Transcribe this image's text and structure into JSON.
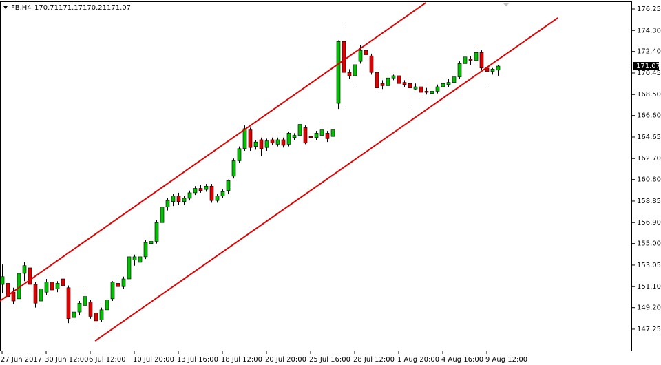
{
  "chart_data": {
    "type": "candlestick",
    "symbol": "FB,H4",
    "categories": [
      "27 Jun 2017",
      null,
      null,
      null,
      null,
      null,
      null,
      null,
      "30 Jun 12:00",
      null,
      null,
      null,
      null,
      null,
      null,
      null,
      "6 Jul 12:00",
      null,
      null,
      null,
      null,
      null,
      null,
      null,
      "10 Jul 20:00",
      null,
      null,
      null,
      null,
      null,
      null,
      null,
      "13 Jul 16:00",
      null,
      null,
      null,
      null,
      null,
      null,
      null,
      "18 Jul 12:00",
      null,
      null,
      null,
      null,
      null,
      null,
      null,
      "20 Jul 20:00",
      null,
      null,
      null,
      null,
      null,
      null,
      null,
      "25 Jul 16:00",
      null,
      null,
      null,
      null,
      null,
      null,
      null,
      "28 Jul 12:00",
      null,
      null,
      null,
      null,
      null,
      null,
      null,
      "1 Aug 20:00",
      null,
      null,
      null,
      null,
      null,
      null,
      null,
      "4 Aug 16:00",
      null,
      null,
      null,
      null,
      null,
      null,
      null,
      "9 Aug 12:00",
      null,
      null
    ],
    "open": [
      151.3,
      151.4,
      150.6,
      150.0,
      152.3,
      152.8,
      151.3,
      149.8,
      150.6,
      151.5,
      150.9,
      151.8,
      151.0,
      148.3,
      148.8,
      149.4,
      149.7,
      148.7,
      148.1,
      149.0,
      150.0,
      151.4,
      151.1,
      151.8,
      153.5,
      153.3,
      153.8,
      155.0,
      155.2,
      156.9,
      158.3,
      158.8,
      159.3,
      158.8,
      159.1,
      159.6,
      160.0,
      159.9,
      160.2,
      158.9,
      159.3,
      159.8,
      161.1,
      162.5,
      163.6,
      165.3,
      163.8,
      164.4,
      163.7,
      164.4,
      164.0,
      164.4,
      164.0,
      164.6,
      164.8,
      165.5,
      164.7,
      164.6,
      164.8,
      165.0,
      164.7,
      167.7,
      173.3,
      170.5,
      170.2,
      171.5,
      172.5,
      172.0,
      170.5,
      169.5,
      169.3,
      170.0,
      170.2,
      169.6,
      169.5,
      169.0,
      169.2,
      168.8,
      168.6,
      168.8,
      169.2,
      169.4,
      169.6,
      170.1,
      171.3,
      171.7,
      171.6,
      172.3,
      170.9,
      170.6,
      170.71
    ],
    "high": [
      153.1,
      151.6,
      151.0,
      152.4,
      153.3,
      153.0,
      151.5,
      151.1,
      151.8,
      151.7,
      151.6,
      152.2,
      151.2,
      149.0,
      149.8,
      150.7,
      149.9,
      148.9,
      149.2,
      150.1,
      151.6,
      151.7,
      152.0,
      154.0,
      154.0,
      154.0,
      155.3,
      155.4,
      157.1,
      158.5,
      159.1,
      159.5,
      159.6,
      159.3,
      159.8,
      160.2,
      160.3,
      160.4,
      160.4,
      159.5,
      159.9,
      160.8,
      162.7,
      163.8,
      165.7,
      165.5,
      164.4,
      164.6,
      164.5,
      164.6,
      164.6,
      164.6,
      165.1,
      165.0,
      166.1,
      165.7,
      164.9,
      165.2,
      165.8,
      165.2,
      165.4,
      173.4,
      174.6,
      170.8,
      171.5,
      173.0,
      172.7,
      172.2,
      170.7,
      169.8,
      170.2,
      170.3,
      170.4,
      169.8,
      169.7,
      169.5,
      169.5,
      169.1,
      169.0,
      169.4,
      169.8,
      169.9,
      170.4,
      171.5,
      172.1,
      172.0,
      172.9,
      172.5,
      171.1,
      170.9,
      171.17
    ],
    "low": [
      150.5,
      149.9,
      149.5,
      149.7,
      151.6,
      151.0,
      149.2,
      149.5,
      150.3,
      150.5,
      150.6,
      150.9,
      147.8,
      148.0,
      148.5,
      149.1,
      148.2,
      147.6,
      147.9,
      148.8,
      149.8,
      150.9,
      150.9,
      151.6,
      153.0,
      152.9,
      153.6,
      154.8,
      155.0,
      156.7,
      158.0,
      158.4,
      158.5,
      158.5,
      158.9,
      159.4,
      159.6,
      159.7,
      158.7,
      158.7,
      159.1,
      159.5,
      160.9,
      162.3,
      163.4,
      163.4,
      163.5,
      162.9,
      163.4,
      163.9,
      163.8,
      163.7,
      163.8,
      164.4,
      164.6,
      164.0,
      164.4,
      164.4,
      164.6,
      164.2,
      164.5,
      167.2,
      167.5,
      169.9,
      169.5,
      171.3,
      171.9,
      170.3,
      168.6,
      169.0,
      169.1,
      169.8,
      169.3,
      169.2,
      167.1,
      168.9,
      168.5,
      168.5,
      168.4,
      168.6,
      169.0,
      169.2,
      169.4,
      169.9,
      171.1,
      171.2,
      171.4,
      170.7,
      169.5,
      170.3,
      170.21
    ],
    "close": [
      152.0,
      150.2,
      149.8,
      152.3,
      153.0,
      151.3,
      149.6,
      150.9,
      151.5,
      150.8,
      151.4,
      151.2,
      148.2,
      148.8,
      149.6,
      150.2,
      148.4,
      148.0,
      149.0,
      149.9,
      151.5,
      151.1,
      151.8,
      153.8,
      153.8,
      153.8,
      155.1,
      155.2,
      156.9,
      158.3,
      158.9,
      159.3,
      158.8,
      159.1,
      159.6,
      160.0,
      159.8,
      160.2,
      158.9,
      159.3,
      159.7,
      160.7,
      162.5,
      163.6,
      165.4,
      163.7,
      164.2,
      163.6,
      164.3,
      164.1,
      164.4,
      163.9,
      165.0,
      164.8,
      165.8,
      164.1,
      164.6,
      165.0,
      165.3,
      164.5,
      165.3,
      173.3,
      170.5,
      170.2,
      171.2,
      172.5,
      172.1,
      170.5,
      169.1,
      169.3,
      170.0,
      170.2,
      169.5,
      169.4,
      169.1,
      169.2,
      168.7,
      168.7,
      168.8,
      169.2,
      169.5,
      169.6,
      170.1,
      171.3,
      171.9,
      171.6,
      172.3,
      170.9,
      170.6,
      170.8,
      171.07
    ],
    "up_color": "#00c000",
    "down_color": "#e00000",
    "wick_color": "#000000",
    "channel_lines": [
      {
        "color": "#e00000",
        "x": [
          -0.4,
          76.9
        ],
        "y": [
          149.8,
          176.81
        ]
      },
      {
        "color": "#e00000",
        "x": [
          16.9,
          100.9
        ],
        "y": [
          146.18,
          175.44
        ]
      }
    ],
    "ylim": [
      145.25,
      177.06
    ],
    "yticks": [
      {
        "value": 176.25,
        "label": "176.25"
      },
      {
        "value": 174.3,
        "label": "174.30"
      },
      {
        "value": 172.4,
        "label": "172.40"
      },
      {
        "value": 170.45,
        "label": "170.45"
      },
      {
        "value": 168.5,
        "label": "168.50"
      },
      {
        "value": 166.6,
        "label": "166.60"
      },
      {
        "value": 164.65,
        "label": "164.65"
      },
      {
        "value": 162.7,
        "label": "162.70"
      },
      {
        "value": 160.8,
        "label": "160.80"
      },
      {
        "value": 158.85,
        "label": "158.85"
      },
      {
        "value": 156.9,
        "label": "156.90"
      },
      {
        "value": 155,
        "label": "155.00"
      },
      {
        "value": 153.05,
        "label": "153.05"
      },
      {
        "value": 151.1,
        "label": "151.10"
      },
      {
        "value": 149.2,
        "label": "149.20"
      },
      {
        "value": 147.25,
        "label": "147.25"
      }
    ]
  }
}
